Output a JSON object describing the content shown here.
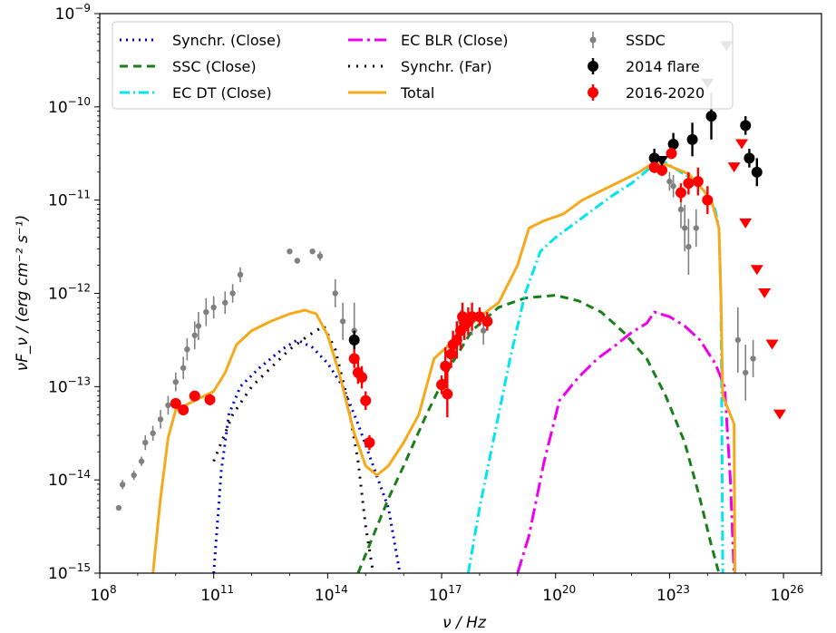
{
  "chart_data": {
    "type": "line",
    "title": "",
    "xlabel": "ν / Hz",
    "ylabel": "νF_ν / (erg cm⁻² s⁻¹)",
    "xscale": "log",
    "yscale": "log",
    "xlim_log10": [
      8,
      27
    ],
    "ylim_log10": [
      -15,
      -9
    ],
    "x_ticks": [
      {
        "log10": 8,
        "base": "10",
        "exp": "8"
      },
      {
        "log10": 11,
        "base": "10",
        "exp": "11"
      },
      {
        "log10": 14,
        "base": "10",
        "exp": "14"
      },
      {
        "log10": 17,
        "base": "10",
        "exp": "17"
      },
      {
        "log10": 20,
        "base": "10",
        "exp": "20"
      },
      {
        "log10": 23,
        "base": "10",
        "exp": "23"
      },
      {
        "log10": 26,
        "base": "10",
        "exp": "26"
      }
    ],
    "y_ticks": [
      {
        "log10": -15,
        "base": "10",
        "exp": "−15"
      },
      {
        "log10": -14,
        "base": "10",
        "exp": "−14"
      },
      {
        "log10": -13,
        "base": "10",
        "exp": "−13"
      },
      {
        "log10": -12,
        "base": "10",
        "exp": "−12"
      },
      {
        "log10": -11,
        "base": "10",
        "exp": "−11"
      },
      {
        "log10": -10,
        "base": "10",
        "exp": "−10"
      },
      {
        "log10": -9,
        "base": "10",
        "exp": "−9"
      }
    ],
    "legend_position": "top",
    "grid": false,
    "series": [
      {
        "name": "Synchr. (Close)",
        "kind": "line",
        "color": "#0000cc",
        "dash": "dotted",
        "points": [
          [
            11.0,
            -15.0
          ],
          [
            11.2,
            -13.9
          ],
          [
            11.4,
            -13.3
          ],
          [
            11.7,
            -13.0
          ],
          [
            12.2,
            -12.8
          ],
          [
            12.8,
            -12.6
          ],
          [
            13.2,
            -12.5
          ],
          [
            13.6,
            -12.58
          ],
          [
            14.0,
            -12.75
          ],
          [
            14.4,
            -13.0
          ],
          [
            14.8,
            -13.4
          ],
          [
            15.2,
            -13.85
          ],
          [
            15.6,
            -14.3
          ],
          [
            15.9,
            -15.0
          ]
        ]
      },
      {
        "name": "SSC (Close)",
        "kind": "line",
        "color": "#1a7f1a",
        "dash": "dashed",
        "points": [
          [
            14.8,
            -15.0
          ],
          [
            15.2,
            -14.6
          ],
          [
            15.6,
            -14.2
          ],
          [
            16.0,
            -13.85
          ],
          [
            16.6,
            -13.3
          ],
          [
            17.2,
            -12.8
          ],
          [
            17.8,
            -12.4
          ],
          [
            18.5,
            -12.15
          ],
          [
            19.2,
            -12.05
          ],
          [
            20.0,
            -12.02
          ],
          [
            20.6,
            -12.08
          ],
          [
            21.2,
            -12.2
          ],
          [
            21.8,
            -12.42
          ],
          [
            22.4,
            -12.7
          ],
          [
            22.9,
            -13.1
          ],
          [
            23.4,
            -13.6
          ],
          [
            23.8,
            -14.2
          ],
          [
            24.1,
            -14.7
          ],
          [
            24.3,
            -15.0
          ]
        ]
      },
      {
        "name": "EC DT (Close)",
        "kind": "line",
        "color": "#00e5ee",
        "dash": "dashdot",
        "points": [
          [
            17.7,
            -15.0
          ],
          [
            18.0,
            -14.3
          ],
          [
            18.4,
            -13.5
          ],
          [
            18.8,
            -12.7
          ],
          [
            19.2,
            -12.0
          ],
          [
            19.6,
            -11.55
          ],
          [
            20.0,
            -11.4
          ],
          [
            20.5,
            -11.25
          ],
          [
            21.0,
            -11.1
          ],
          [
            21.5,
            -10.95
          ],
          [
            22.0,
            -10.82
          ],
          [
            22.5,
            -10.65
          ],
          [
            22.9,
            -10.6
          ],
          [
            23.3,
            -10.7
          ],
          [
            23.7,
            -10.8
          ],
          [
            24.0,
            -10.95
          ],
          [
            24.2,
            -11.1
          ],
          [
            24.3,
            -11.3
          ],
          [
            24.35,
            -12.0
          ],
          [
            24.38,
            -13.5
          ],
          [
            24.4,
            -15.0
          ]
        ]
      },
      {
        "name": "EC BLR (Close)",
        "kind": "line",
        "color": "#ee00ee",
        "dash": "longdashdot",
        "points": [
          [
            19.0,
            -15.0
          ],
          [
            19.3,
            -14.6
          ],
          [
            19.7,
            -13.8
          ],
          [
            20.1,
            -13.15
          ],
          [
            20.6,
            -12.9
          ],
          [
            21.1,
            -12.7
          ],
          [
            21.6,
            -12.55
          ],
          [
            22.0,
            -12.42
          ],
          [
            22.4,
            -12.32
          ],
          [
            22.6,
            -12.2
          ],
          [
            23.0,
            -12.25
          ],
          [
            23.4,
            -12.35
          ],
          [
            23.8,
            -12.5
          ],
          [
            24.2,
            -12.75
          ],
          [
            24.45,
            -13.0
          ],
          [
            24.6,
            -14.0
          ],
          [
            24.7,
            -15.0
          ]
        ]
      },
      {
        "name": "Synchr. (Far)",
        "kind": "line",
        "color": "#000000",
        "dash": "finedot",
        "points": [
          [
            11.0,
            -13.8
          ],
          [
            11.5,
            -13.3
          ],
          [
            12.0,
            -13.0
          ],
          [
            12.5,
            -12.8
          ],
          [
            13.0,
            -12.6
          ],
          [
            13.5,
            -12.45
          ],
          [
            13.9,
            -12.35
          ],
          [
            14.2,
            -12.6
          ],
          [
            14.5,
            -13.1
          ],
          [
            14.8,
            -13.8
          ],
          [
            15.0,
            -14.5
          ],
          [
            15.2,
            -15.0
          ]
        ]
      },
      {
        "name": "Total",
        "kind": "line",
        "color": "#f6a91a",
        "dash": "solid",
        "points": [
          [
            9.4,
            -15.0
          ],
          [
            9.6,
            -14.2
          ],
          [
            9.8,
            -13.55
          ],
          [
            10.0,
            -13.25
          ],
          [
            10.5,
            -13.15
          ],
          [
            11.0,
            -13.05
          ],
          [
            11.3,
            -12.85
          ],
          [
            11.6,
            -12.55
          ],
          [
            12.0,
            -12.4
          ],
          [
            12.5,
            -12.3
          ],
          [
            13.0,
            -12.22
          ],
          [
            13.4,
            -12.18
          ],
          [
            13.7,
            -12.22
          ],
          [
            14.0,
            -12.45
          ],
          [
            14.3,
            -12.85
          ],
          [
            14.7,
            -13.5
          ],
          [
            15.0,
            -13.85
          ],
          [
            15.3,
            -13.95
          ],
          [
            15.6,
            -13.85
          ],
          [
            16.0,
            -13.6
          ],
          [
            16.4,
            -13.3
          ],
          [
            16.8,
            -12.7
          ],
          [
            17.2,
            -12.55
          ],
          [
            17.6,
            -12.4
          ],
          [
            18.0,
            -12.25
          ],
          [
            18.5,
            -12.1
          ],
          [
            19.0,
            -11.7
          ],
          [
            19.3,
            -11.3
          ],
          [
            19.7,
            -11.22
          ],
          [
            20.2,
            -11.15
          ],
          [
            20.7,
            -11.0
          ],
          [
            21.2,
            -10.9
          ],
          [
            21.7,
            -10.8
          ],
          [
            22.2,
            -10.7
          ],
          [
            22.5,
            -10.62
          ],
          [
            22.8,
            -10.6
          ],
          [
            23.1,
            -10.65
          ],
          [
            23.5,
            -10.72
          ],
          [
            23.8,
            -10.85
          ],
          [
            24.1,
            -11.0
          ],
          [
            24.3,
            -11.3
          ],
          [
            24.35,
            -12.0
          ],
          [
            24.4,
            -13.1
          ],
          [
            24.6,
            -13.3
          ],
          [
            24.7,
            -13.4
          ],
          [
            24.72,
            -15.0
          ]
        ]
      },
      {
        "name": "SSDC",
        "kind": "errorbar",
        "color": "#808080",
        "points": [
          [
            8.5,
            -14.3,
            0.0
          ],
          [
            8.6,
            -14.05,
            0.05
          ],
          [
            8.9,
            -13.95,
            0.05
          ],
          [
            9.1,
            -13.8,
            0.05
          ],
          [
            9.2,
            -13.6,
            0.08
          ],
          [
            9.4,
            -13.5,
            0.08
          ],
          [
            9.6,
            -13.35,
            0.1
          ],
          [
            9.8,
            -13.2,
            0.1
          ],
          [
            10.0,
            -12.95,
            0.1
          ],
          [
            10.2,
            -12.8,
            0.12
          ],
          [
            10.3,
            -12.6,
            0.12
          ],
          [
            10.5,
            -12.45,
            0.15
          ],
          [
            10.6,
            -12.35,
            0.15
          ],
          [
            10.8,
            -12.2,
            0.15
          ],
          [
            11.0,
            -12.15,
            0.12
          ],
          [
            11.3,
            -12.1,
            0.12
          ],
          [
            11.5,
            -12.0,
            0.1
          ],
          [
            11.7,
            -11.8,
            0.08
          ],
          [
            13.0,
            -11.55,
            0.0
          ],
          [
            13.2,
            -11.65,
            0.0
          ],
          [
            13.6,
            -11.55,
            0.0
          ],
          [
            13.8,
            -11.6,
            0.05
          ],
          [
            14.2,
            -12.0,
            0.15
          ],
          [
            14.4,
            -12.3,
            0.2
          ],
          [
            14.7,
            -12.4,
            0.3
          ],
          [
            17.5,
            -12.3,
            0.12
          ],
          [
            17.8,
            -12.3,
            0.15
          ],
          [
            18.1,
            -12.4,
            0.15
          ],
          [
            23.0,
            -10.8,
            0.1
          ],
          [
            23.1,
            -10.85,
            0.12
          ],
          [
            23.3,
            -11.1,
            0.2
          ],
          [
            23.4,
            -11.3,
            0.25
          ],
          [
            23.5,
            -11.5,
            0.3
          ],
          [
            23.7,
            -11.3,
            0.2
          ],
          [
            24.8,
            -12.5,
            0.35
          ],
          [
            25.0,
            -12.85,
            0.3
          ],
          [
            25.2,
            -12.7,
            0.2
          ]
        ]
      },
      {
        "name": "2014 flare",
        "kind": "errorbar",
        "color": "#000000",
        "points": [
          [
            14.7,
            -12.5,
            0.1
          ],
          [
            22.6,
            -10.55,
            0.1
          ],
          [
            23.1,
            -10.4,
            0.12
          ],
          [
            23.6,
            -10.35,
            0.18
          ],
          [
            24.1,
            -10.1,
            0.25
          ],
          [
            25.0,
            -10.2,
            0.1
          ],
          [
            25.1,
            -10.55,
            0.1
          ],
          [
            25.3,
            -10.7,
            0.15
          ]
        ]
      },
      {
        "name": "2016-2020",
        "kind": "errorbar",
        "color": "#ff0000",
        "points": [
          [
            10.0,
            -13.18,
            0.05
          ],
          [
            10.2,
            -13.25,
            0.05
          ],
          [
            10.5,
            -13.1,
            0.05
          ],
          [
            10.9,
            -13.14,
            0.06
          ],
          [
            14.7,
            -12.7,
            0.1
          ],
          [
            14.8,
            -12.85,
            0.12
          ],
          [
            14.9,
            -12.9,
            0.12
          ],
          [
            15.0,
            -13.15,
            0.1
          ],
          [
            15.1,
            -13.6,
            0.08
          ],
          [
            17.0,
            -12.98,
            0.1
          ],
          [
            17.1,
            -12.78,
            0.2
          ],
          [
            17.15,
            -13.08,
            0.25
          ],
          [
            17.25,
            -12.65,
            0.15
          ],
          [
            17.3,
            -12.55,
            0.15
          ],
          [
            17.4,
            -12.5,
            0.2
          ],
          [
            17.5,
            -12.4,
            0.2
          ],
          [
            17.55,
            -12.25,
            0.15
          ],
          [
            17.6,
            -12.35,
            0.15
          ],
          [
            17.7,
            -12.3,
            0.15
          ],
          [
            17.8,
            -12.25,
            0.15
          ],
          [
            18.0,
            -12.25,
            0.1
          ],
          [
            18.2,
            -12.3,
            0.1
          ],
          [
            22.6,
            -10.65,
            0.06
          ],
          [
            22.8,
            -10.68,
            0.06
          ],
          [
            23.05,
            -10.5,
            0.06
          ],
          [
            23.3,
            -10.92,
            0.1
          ],
          [
            23.5,
            -10.82,
            0.12
          ],
          [
            23.75,
            -10.8,
            0.15
          ],
          [
            24.0,
            -11.0,
            0.15
          ]
        ]
      },
      {
        "name": "2014 flare UL",
        "kind": "upperlimit",
        "color": "#000000",
        "points": [
          [
            22.8,
            -10.58
          ],
          [
            24.0,
            -9.75
          ],
          [
            24.5,
            -9.35
          ]
        ]
      },
      {
        "name": "2016-2020 UL",
        "kind": "upperlimit",
        "color": "#ff0000",
        "points": [
          [
            24.7,
            -10.65
          ],
          [
            24.9,
            -10.4
          ],
          [
            25.0,
            -11.25
          ],
          [
            25.3,
            -11.75
          ],
          [
            25.5,
            -12.0
          ],
          [
            25.7,
            -12.55
          ],
          [
            25.9,
            -13.3
          ]
        ]
      }
    ],
    "legend": [
      {
        "label": "Synchr. (Close)",
        "series": 0
      },
      {
        "label": "SSC (Close)",
        "series": 1
      },
      {
        "label": "EC DT (Close)",
        "series": 2
      },
      {
        "label": "EC BLR (Close)",
        "series": 3
      },
      {
        "label": "Synchr. (Far)",
        "series": 4
      },
      {
        "label": "Total",
        "series": 5
      },
      {
        "label": "SSDC",
        "series": 6
      },
      {
        "label": "2014 flare",
        "series": 7
      },
      {
        "label": "2016-2020",
        "series": 8
      }
    ]
  }
}
